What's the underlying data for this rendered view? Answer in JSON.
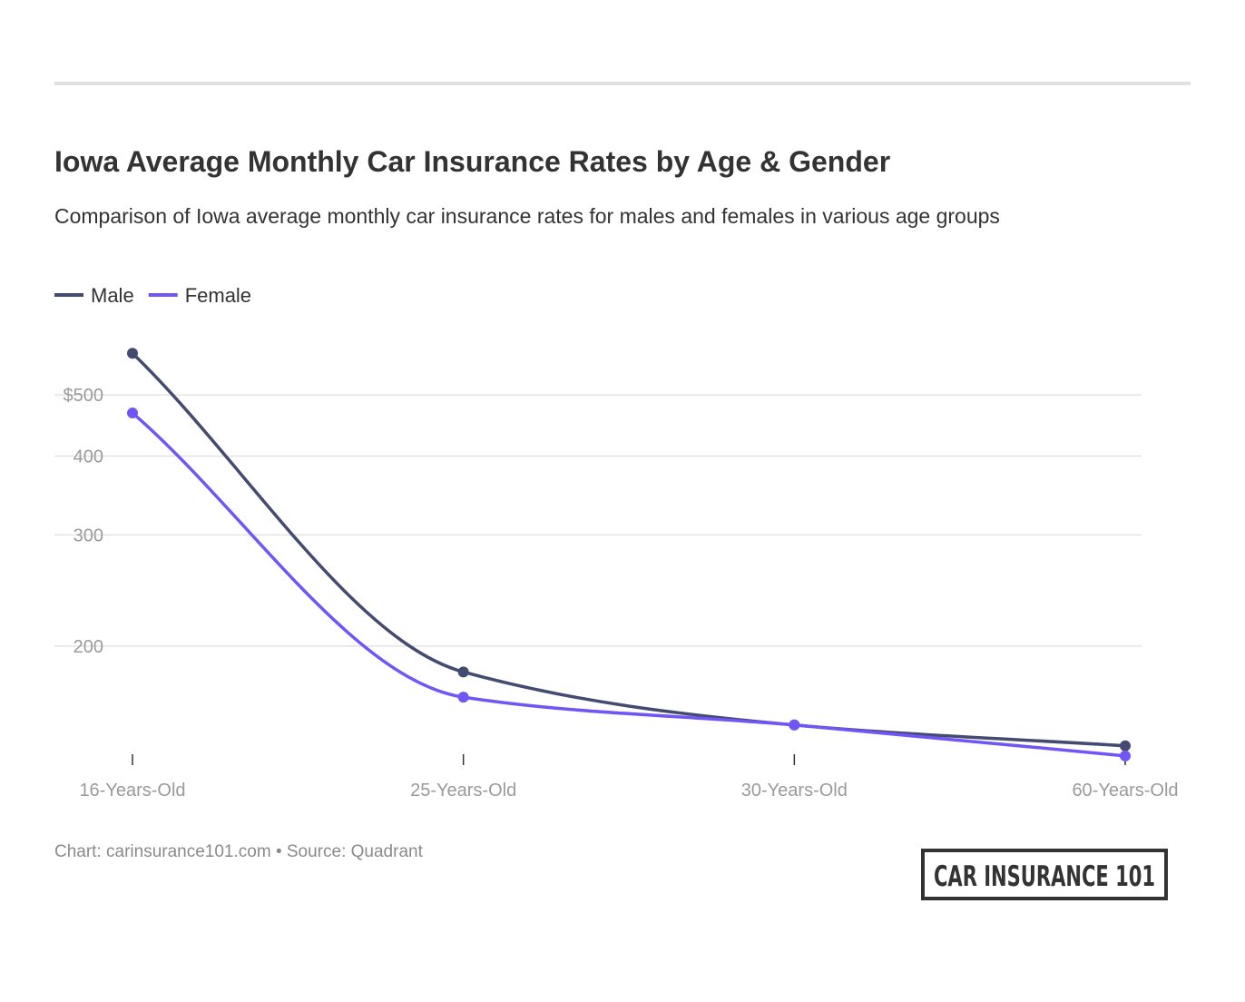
{
  "chart_data": {
    "type": "line",
    "title": "Iowa Average Monthly Car Insurance Rates by Age & Gender",
    "subtitle": "Comparison of Iowa average monthly car insurance rates for males and females in various age groups",
    "categories": [
      "16-Years-Old",
      "25-Years-Old",
      "30-Years-Old",
      "60-Years-Old"
    ],
    "series": [
      {
        "name": "Male",
        "color": "#434b70",
        "values": [
          582,
          182,
          150,
          139
        ]
      },
      {
        "name": "Female",
        "color": "#7255f5",
        "values": [
          468,
          166,
          150,
          134
        ]
      }
    ],
    "ylim": [
      130,
      600
    ],
    "yticks": [
      200,
      300,
      400,
      {
        "value": 500,
        "label": "$500"
      }
    ],
    "log_scale": true,
    "grid": true,
    "legend": "top-left",
    "footer": "Chart: carinsurance101.com • Source: Quadrant",
    "logo": "CAR INSURANCE 101"
  }
}
